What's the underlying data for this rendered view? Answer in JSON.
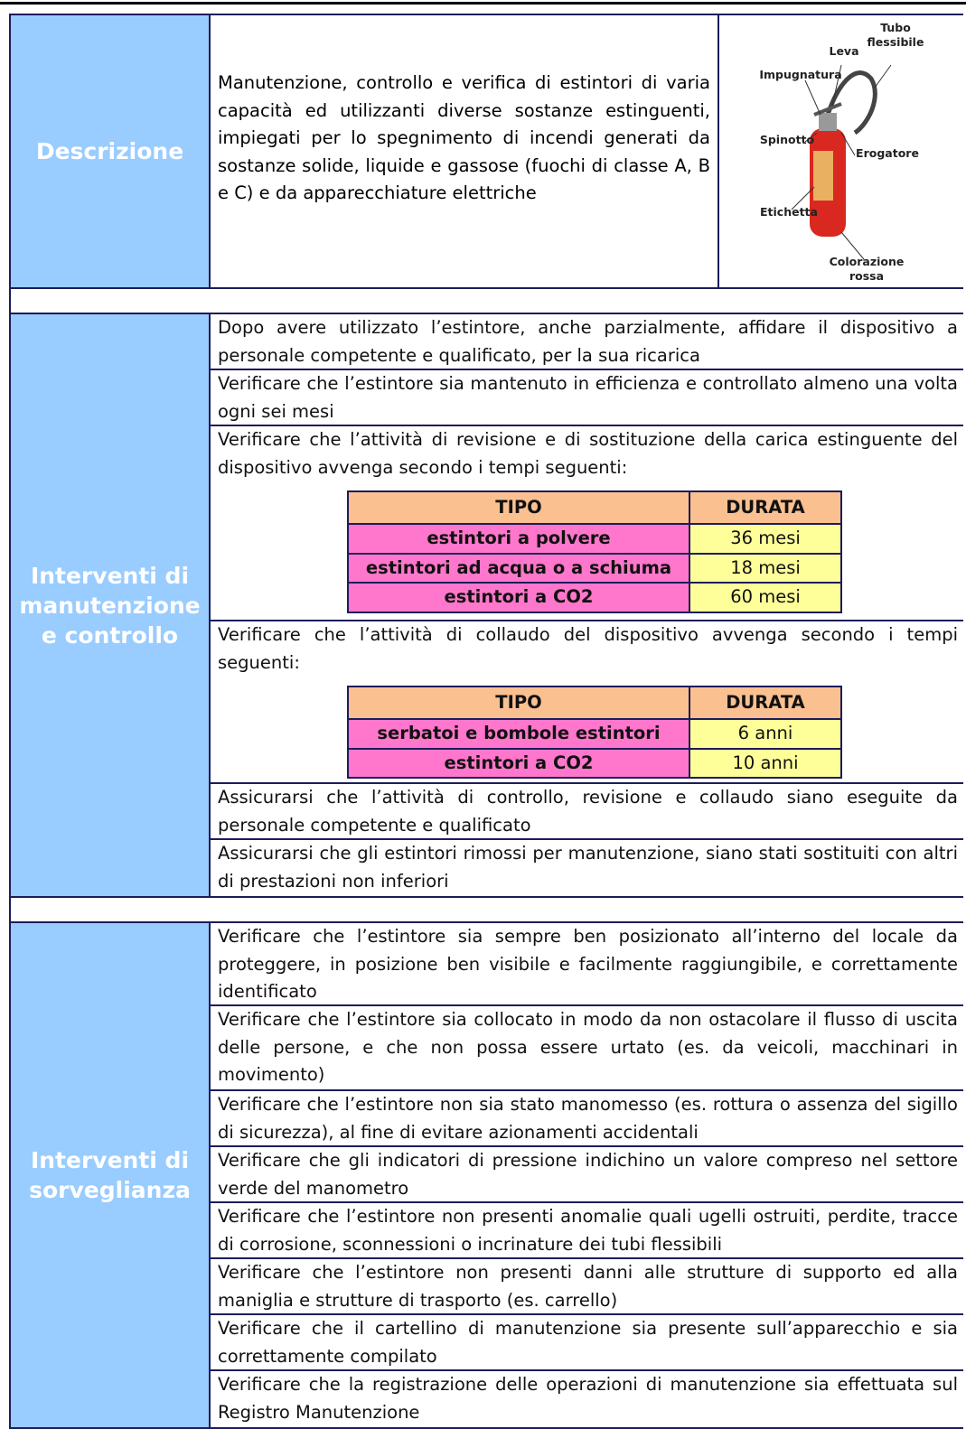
{
  "sections": [
    {
      "label": "Descrizione",
      "text": "Manutenzione, controllo e verifica di estintori di varia capacità ed utilizzanti diverse sostanze estinguenti, impiegati per lo spegnimento di incendi generati da sostanze solide, liquide e gassose (fuochi di classe A, B e C) e da apparecchiature elettriche",
      "figure_labels": [
        "Tubo flessibile",
        "Leva",
        "Impugnatura",
        "Spinotto",
        "Erogatore",
        "Etichetta",
        "Colorazione rossa"
      ]
    },
    {
      "label": "Interventi di manutenzione e controllo",
      "items": [
        {
          "text": "Dopo avere utilizzato l’estintore, anche parzialmente, affidare il dispositivo a personale competente e qualificato, per la sua ricarica"
        },
        {
          "text": "Verificare che l’estintore sia mantenuto in efficienza e controllato almeno una volta ogni sei mesi"
        },
        {
          "text": "Verificare che l’attività di revisione e di sostituzione della carica estinguente del dispositivo avvenga secondo i tempi seguenti:",
          "table": {
            "header": [
              "TIPO",
              "DURATA"
            ],
            "rows": [
              [
                "estintori a polvere",
                "36 mesi"
              ],
              [
                "estintori ad acqua o a schiuma",
                "18 mesi"
              ],
              [
                "estintori a CO2",
                "60 mesi"
              ]
            ]
          }
        },
        {
          "text": "Verificare che l’attività di collaudo del dispositivo avvenga secondo i tempi seguenti:",
          "table": {
            "header": [
              "TIPO",
              "DURATA"
            ],
            "rows": [
              [
                "serbatoi e bombole estintori",
                "6 anni"
              ],
              [
                "estintori a CO2",
                "10 anni"
              ]
            ]
          }
        },
        {
          "text": "Assicurarsi che l’attività di controllo, revisione e collaudo siano eseguite da personale competente e qualificato"
        },
        {
          "text": "Assicurarsi che gli estintori rimossi per manutenzione, siano stati sostituiti con altri di prestazioni non inferiori"
        }
      ]
    },
    {
      "label": "Interventi di sorveglianza",
      "items": [
        {
          "text": "Verificare che l’estintore sia sempre ben posizionato all’interno del locale da proteggere, in posizione ben visibile e facilmente raggiungibile, e correttamente identificato"
        },
        {
          "text": "Verificare che l’estintore sia collocato in modo da non ostacolare il flusso di uscita delle persone, e che non possa essere urtato (es. da veicoli, macchinari in movimento)"
        },
        {
          "text": "Verificare che l’estintore non sia stato manomesso (es. rottura o assenza del sigillo di sicurezza), al fine di evitare azionamenti accidentali"
        },
        {
          "text": "Verificare che gli indicatori di pressione indichino un valore compreso nel settore verde del manometro"
        },
        {
          "text": "Verificare che l’estintore non presenti anomalie quali ugelli ostruiti, perdite, tracce di corrosione, sconnessioni o incrinature dei tubi flessibili"
        },
        {
          "text": "Verificare che l’estintore non presenti danni alle strutture di supporto ed alla maniglia e strutture di trasporto (es. carrello)"
        },
        {
          "text": "Verificare che il cartellino di manutenzione sia presente sull’apparecchio e sia correttamente compilato"
        },
        {
          "text": "Verificare che la registrazione delle operazioni di manutenzione sia effettuata sul Registro Manutenzione"
        }
      ]
    }
  ]
}
